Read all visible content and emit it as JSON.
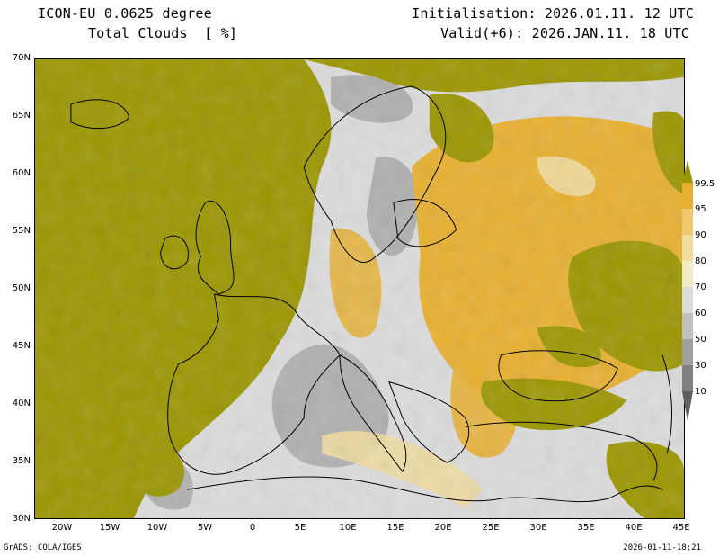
{
  "header": {
    "model": "ICON-EU 0.0625 degree",
    "variable": "Total Clouds  [ %]",
    "initialisation": "Initialisation: 2026.01.11. 12 UTC",
    "valid": "Valid(+6): 2026.JAN.11. 18 UTC"
  },
  "map": {
    "lat_labels": [
      "70N",
      "65N",
      "60N",
      "55N",
      "50N",
      "45N",
      "40N",
      "35N",
      "30N"
    ],
    "lon_labels": [
      "20W",
      "15W",
      "10W",
      "5W",
      "0",
      "5E",
      "10E",
      "15E",
      "20E",
      "25E",
      "30E",
      "35E",
      "40E",
      "45E"
    ],
    "lat_range": [
      30,
      70
    ],
    "lon_range": [
      -23,
      45
    ]
  },
  "colorbar": {
    "levels": [
      "99.5",
      "95",
      "90",
      "80",
      "70",
      "60",
      "50",
      "30",
      "10"
    ],
    "colors": [
      "#9b9600",
      "#e8b030",
      "#f0c870",
      "#f0dca0",
      "#f0ecc8",
      "#dcdcdc",
      "#c0c0c0",
      "#a0a0a0",
      "#808080",
      "#606060"
    ]
  },
  "footer": {
    "credit": "GrADS: COLA/IGES",
    "timestamp": "2026-01-11-18:21"
  }
}
